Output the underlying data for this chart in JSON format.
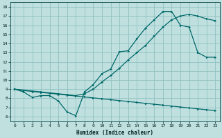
{
  "xlabel": "Humidex (Indice chaleur)",
  "bg_color": "#c0e0e0",
  "grid_color": "#90c0c0",
  "line_color": "#006868",
  "xlim": [
    -0.5,
    23.5
  ],
  "ylim": [
    5.5,
    18.5
  ],
  "xticks": [
    0,
    1,
    2,
    3,
    4,
    5,
    6,
    7,
    8,
    9,
    10,
    11,
    12,
    13,
    14,
    15,
    16,
    17,
    18,
    19,
    20,
    21,
    22,
    23
  ],
  "yticks": [
    6,
    7,
    8,
    9,
    10,
    11,
    12,
    13,
    14,
    15,
    16,
    17,
    18
  ],
  "line1_x": [
    0,
    1,
    2,
    3,
    4,
    5,
    6,
    7,
    8,
    9,
    10,
    11,
    12,
    13,
    14,
    15,
    16,
    17,
    18,
    19,
    20,
    21,
    22,
    23
  ],
  "line1_y": [
    9.0,
    8.85,
    8.75,
    8.65,
    8.55,
    8.45,
    8.35,
    8.25,
    8.15,
    8.05,
    7.95,
    7.85,
    7.75,
    7.65,
    7.55,
    7.45,
    7.35,
    7.25,
    7.15,
    7.05,
    6.95,
    6.85,
    6.75,
    6.65
  ],
  "line2_x": [
    0,
    1,
    2,
    3,
    4,
    5,
    6,
    7,
    8,
    9,
    10,
    11,
    12,
    13,
    14,
    15,
    16,
    17,
    18,
    19,
    20,
    21,
    22,
    23
  ],
  "line2_y": [
    9.0,
    8.7,
    8.1,
    8.3,
    8.3,
    7.7,
    6.5,
    6.1,
    8.7,
    9.5,
    10.7,
    11.2,
    13.1,
    13.2,
    14.5,
    15.7,
    16.6,
    17.5,
    17.5,
    16.0,
    15.8,
    13.0,
    12.5,
    12.5
  ],
  "line3_x": [
    0,
    1,
    2,
    3,
    4,
    5,
    6,
    7,
    8,
    9,
    10,
    11,
    12,
    13,
    14,
    15,
    16,
    17,
    18,
    19,
    20,
    21,
    22,
    23
  ],
  "line3_y": [
    9.0,
    8.9,
    8.8,
    8.7,
    8.6,
    8.5,
    8.4,
    8.3,
    8.5,
    9.0,
    9.8,
    10.5,
    11.3,
    12.2,
    13.0,
    13.8,
    14.8,
    15.8,
    16.6,
    17.0,
    17.2,
    17.0,
    16.7,
    16.5
  ]
}
